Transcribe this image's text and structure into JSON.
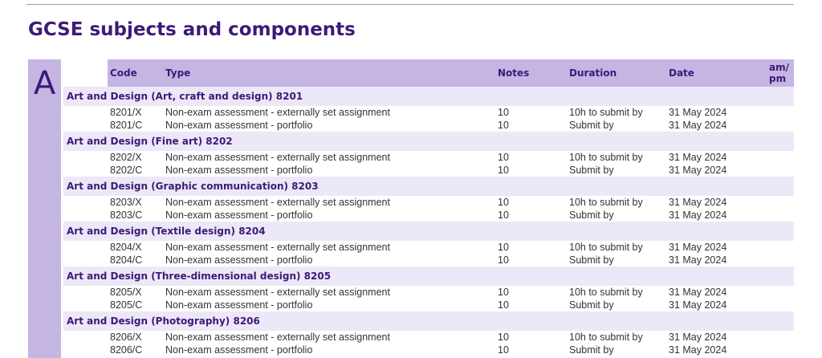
{
  "page": {
    "title": "GCSE subjects and components",
    "section_letter": "A"
  },
  "table": {
    "headers": {
      "code": "Code",
      "type": "Type",
      "notes": "Notes",
      "duration": "Duration",
      "date": "Date",
      "ampm_line1": "am/",
      "ampm_line2": "pm"
    },
    "groups": [
      {
        "title": "Art and Design (Art, craft and design)  8201",
        "rows": [
          {
            "code": "8201/X",
            "type": "Non-exam assessment - externally set assignment",
            "notes": "10",
            "duration": "10h to submit by",
            "date": "31 May 2024"
          },
          {
            "code": "8201/C",
            "type": "Non-exam assessment - portfolio",
            "notes": "10",
            "duration": "Submit by",
            "date": "31 May 2024"
          }
        ]
      },
      {
        "title": "Art and Design (Fine art)  8202",
        "rows": [
          {
            "code": "8202/X",
            "type": "Non-exam assessment - externally set assignment",
            "notes": "10",
            "duration": "10h to submit by",
            "date": "31 May 2024"
          },
          {
            "code": "8202/C",
            "type": "Non-exam assessment - portfolio",
            "notes": "10",
            "duration": "Submit by",
            "date": "31 May 2024"
          }
        ]
      },
      {
        "title": "Art and Design (Graphic communication)  8203",
        "rows": [
          {
            "code": "8203/X",
            "type": "Non-exam assessment - externally set assignment",
            "notes": "10",
            "duration": "10h to submit by",
            "date": "31 May 2024"
          },
          {
            "code": "8203/C",
            "type": "Non-exam assessment - portfolio",
            "notes": "10",
            "duration": "Submit by",
            "date": "31 May 2024"
          }
        ]
      },
      {
        "title": "Art and Design (Textile design)  8204",
        "rows": [
          {
            "code": "8204/X",
            "type": "Non-exam assessment - externally set assignment",
            "notes": "10",
            "duration": "10h to submit by",
            "date": "31 May 2024"
          },
          {
            "code": "8204/C",
            "type": "Non-exam assessment - portfolio",
            "notes": "10",
            "duration": "Submit by",
            "date": "31 May 2024"
          }
        ]
      },
      {
        "title": "Art and Design (Three-dimensional design)  8205",
        "rows": [
          {
            "code": "8205/X",
            "type": "Non-exam assessment - externally set assignment",
            "notes": "10",
            "duration": "10h to submit by",
            "date": "31 May 2024"
          },
          {
            "code": "8205/C",
            "type": "Non-exam assessment - portfolio",
            "notes": "10",
            "duration": "Submit by",
            "date": "31 May 2024"
          }
        ]
      },
      {
        "title": "Art and Design (Photography)  8206",
        "rows": [
          {
            "code": "8206/X",
            "type": "Non-exam assessment - externally set assignment",
            "notes": "10",
            "duration": "10h to submit by",
            "date": "31 May 2024"
          },
          {
            "code": "8206/C",
            "type": "Non-exam assessment - portfolio",
            "notes": "10",
            "duration": "Submit by",
            "date": "31 May 2024"
          }
        ]
      }
    ]
  }
}
